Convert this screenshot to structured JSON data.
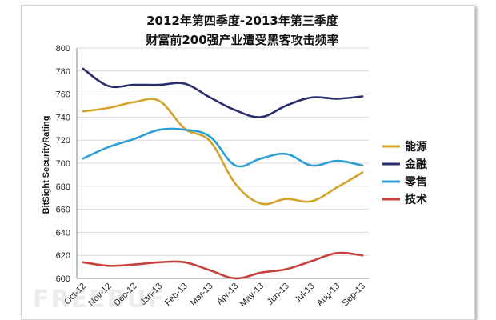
{
  "chart_data": {
    "type": "line",
    "title_lines": [
      "2012年第四季度-2013年第三季度",
      "财富前200强产业遭受黑客攻击频率"
    ],
    "ylabel": "BitSight SecurityRating",
    "xlabel": "",
    "ylim": [
      600,
      800
    ],
    "yticks": [
      600,
      620,
      640,
      660,
      680,
      700,
      720,
      740,
      760,
      780,
      800
    ],
    "grid": true,
    "legend_position": "right",
    "categories": [
      "Oct-12",
      "Nov-12",
      "Dec-12",
      "Jan-13",
      "Feb-13",
      "Mar-13",
      "Apr-13",
      "May-13",
      "Jun-13",
      "Jul-13",
      "Aug-13",
      "Sep-13"
    ],
    "series": [
      {
        "name": "能源",
        "color": "#d4a32c",
        "values": [
          745,
          748,
          753,
          754,
          730,
          719,
          682,
          665,
          669,
          667,
          679,
          692
        ]
      },
      {
        "name": "金融",
        "color": "#2a2d6e",
        "values": [
          782,
          767,
          768,
          768,
          769,
          757,
          746,
          740,
          750,
          757,
          756,
          758
        ]
      },
      {
        "name": "零售",
        "color": "#2c9fd4",
        "values": [
          704,
          714,
          721,
          729,
          729,
          723,
          698,
          704,
          708,
          698,
          702,
          698
        ]
      },
      {
        "name": "技术",
        "color": "#c8403b",
        "values": [
          614,
          611,
          612,
          614,
          614,
          607,
          600,
          605,
          608,
          615,
          622,
          620
        ]
      }
    ]
  },
  "watermark": {
    "text": "FREEBUF"
  }
}
